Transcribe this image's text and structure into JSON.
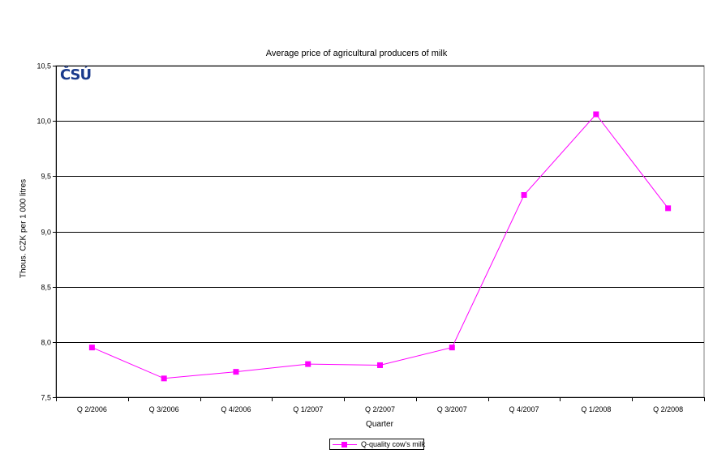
{
  "logo_text": "ČSÚ",
  "chart_data": {
    "type": "line",
    "title": "Average price of agricultural producers of milk",
    "xlabel": "Quarter",
    "ylabel": "Thous. CZK per 1 000 litres",
    "categories": [
      "Q 2/2006",
      "Q 3/2006",
      "Q 4/2006",
      "Q 1/2007",
      "Q 2/2007",
      "Q 3/2007",
      "Q 4/2007",
      "Q 1/2008",
      "Q 2/2008"
    ],
    "series": [
      {
        "name": "Q-quality cow's milk",
        "values": [
          7.95,
          7.67,
          7.73,
          7.8,
          7.79,
          7.95,
          9.33,
          10.06,
          9.21
        ]
      }
    ],
    "ylim": [
      7.5,
      10.5
    ],
    "yticks": [
      "7,5",
      "8,0",
      "8,5",
      "9,0",
      "9,5",
      "10,0",
      "10,5"
    ],
    "grid": true,
    "legend_position": "bottom",
    "colors": {
      "series": "#ff00ff",
      "grid": "#000000",
      "logo": "#1a3a8c"
    }
  }
}
